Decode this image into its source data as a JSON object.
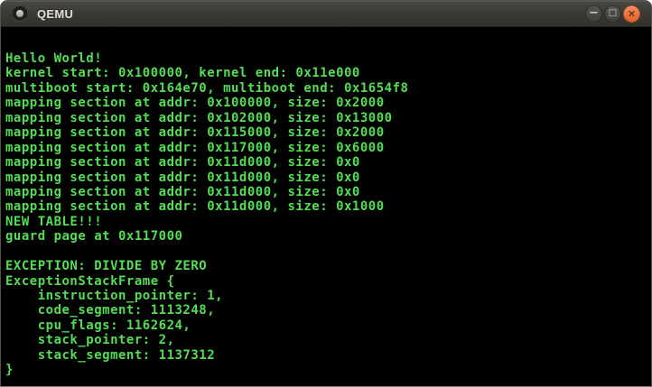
{
  "window": {
    "title": "QEMU",
    "titlebar": {
      "minimize_glyph": "−",
      "maximize_glyph": "□",
      "close_glyph": "✕",
      "close_color": "#e4622d",
      "bar_color": "#3b3a35"
    }
  },
  "terminal": {
    "foreground": "#53de53",
    "background": "#000000",
    "lines": [
      "Hello World!",
      "kernel start: 0x100000, kernel end: 0x11e000",
      "multiboot start: 0x164e70, multiboot end: 0x1654f8",
      "mapping section at addr: 0x100000, size: 0x2000",
      "mapping section at addr: 0x102000, size: 0x13000",
      "mapping section at addr: 0x115000, size: 0x2000",
      "mapping section at addr: 0x117000, size: 0x6000",
      "mapping section at addr: 0x11d000, size: 0x0",
      "mapping section at addr: 0x11d000, size: 0x0",
      "mapping section at addr: 0x11d000, size: 0x0",
      "mapping section at addr: 0x11d000, size: 0x1000",
      "NEW TABLE!!!",
      "guard page at 0x117000",
      "",
      "EXCEPTION: DIVIDE BY ZERO",
      "ExceptionStackFrame {",
      "    instruction_pointer: 1,",
      "    code_segment: 1113248,",
      "    cpu_flags: 1162624,",
      "    stack_pointer: 2,",
      "    stack_segment: 1137312",
      "}"
    ]
  }
}
